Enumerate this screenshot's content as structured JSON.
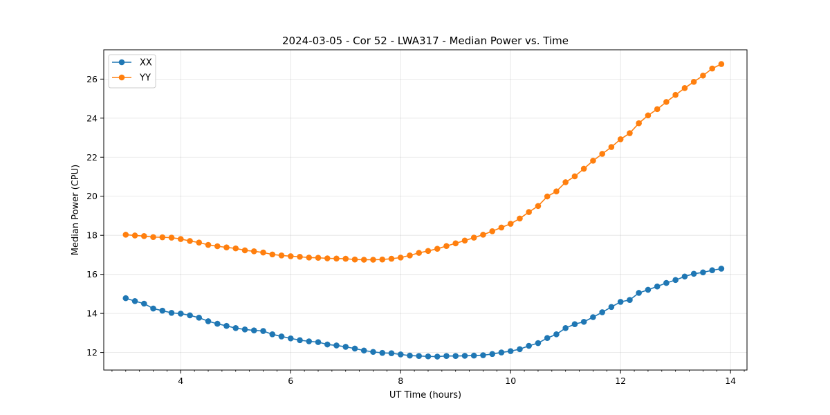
{
  "chart_data": {
    "type": "line",
    "title": "2024-03-05 - Cor 52 - LWA317 - Median Power vs. Time",
    "xlabel": "UT Time (hours)",
    "ylabel": "Median Power (CPU)",
    "xlim": [
      2.6,
      14.3
    ],
    "ylim": [
      11.1,
      27.5
    ],
    "xticks": [
      4,
      6,
      8,
      10,
      12,
      14
    ],
    "yticks": [
      12,
      14,
      16,
      18,
      20,
      22,
      24,
      26
    ],
    "grid": true,
    "legend_position": "upper-left",
    "x": [
      3.0,
      3.167,
      3.333,
      3.5,
      3.667,
      3.833,
      4.0,
      4.167,
      4.333,
      4.5,
      4.667,
      4.833,
      5.0,
      5.167,
      5.333,
      5.5,
      5.667,
      5.833,
      6.0,
      6.167,
      6.333,
      6.5,
      6.667,
      6.833,
      7.0,
      7.167,
      7.333,
      7.5,
      7.667,
      7.833,
      8.0,
      8.167,
      8.333,
      8.5,
      8.667,
      8.833,
      9.0,
      9.167,
      9.333,
      9.5,
      9.667,
      9.833,
      10.0,
      10.167,
      10.333,
      10.5,
      10.667,
      10.833,
      11.0,
      11.167,
      11.333,
      11.5,
      11.667,
      11.833,
      12.0,
      12.167,
      12.333,
      12.5,
      12.667,
      12.833,
      13.0,
      13.167,
      13.333,
      13.5,
      13.667,
      13.833
    ],
    "series": [
      {
        "name": "XX",
        "color": "#1f77b4",
        "values": [
          14.78,
          14.63,
          14.5,
          14.25,
          14.14,
          14.03,
          13.99,
          13.9,
          13.78,
          13.6,
          13.47,
          13.36,
          13.25,
          13.18,
          13.13,
          13.1,
          12.93,
          12.82,
          12.72,
          12.63,
          12.57,
          12.53,
          12.41,
          12.36,
          12.29,
          12.2,
          12.1,
          12.03,
          11.98,
          11.96,
          11.9,
          11.84,
          11.82,
          11.8,
          11.79,
          11.82,
          11.82,
          11.83,
          11.84,
          11.86,
          11.92,
          12.0,
          12.07,
          12.17,
          12.34,
          12.48,
          12.74,
          12.93,
          13.25,
          13.45,
          13.57,
          13.81,
          14.06,
          14.33,
          14.59,
          14.69,
          15.05,
          15.21,
          15.38,
          15.56,
          15.71,
          15.89,
          16.03,
          16.1,
          16.21,
          16.29
        ]
      },
      {
        "name": "YY",
        "color": "#ff7f0e",
        "values": [
          18.03,
          17.99,
          17.96,
          17.91,
          17.9,
          17.88,
          17.81,
          17.71,
          17.63,
          17.51,
          17.44,
          17.38,
          17.33,
          17.23,
          17.18,
          17.12,
          17.02,
          16.97,
          16.93,
          16.9,
          16.86,
          16.85,
          16.82,
          16.81,
          16.8,
          16.76,
          16.75,
          16.75,
          16.76,
          16.8,
          16.86,
          16.97,
          17.1,
          17.2,
          17.31,
          17.45,
          17.59,
          17.73,
          17.88,
          18.03,
          18.21,
          18.4,
          18.59,
          18.86,
          19.19,
          19.5,
          19.99,
          20.25,
          20.72,
          21.02,
          21.41,
          21.82,
          22.17,
          22.52,
          22.92,
          23.23,
          23.74,
          24.14,
          24.46,
          24.83,
          25.19,
          25.54,
          25.86,
          26.18,
          26.54,
          26.77
        ]
      }
    ]
  }
}
